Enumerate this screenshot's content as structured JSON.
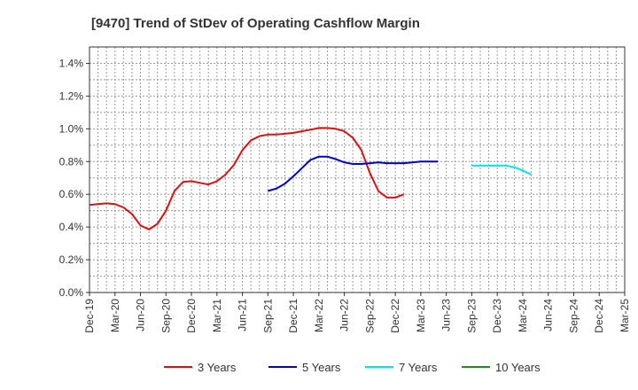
{
  "chart_data": {
    "type": "line",
    "title": "[9470]  Trend of StDev of Operating Cashflow Margin",
    "xlabel": "",
    "ylabel": "",
    "x_ticks": [
      "Dec-19",
      "Mar-20",
      "Jun-20",
      "Sep-20",
      "Dec-20",
      "Mar-21",
      "Jun-21",
      "Sep-21",
      "Dec-21",
      "Mar-22",
      "Jun-22",
      "Sep-22",
      "Dec-22",
      "Mar-23",
      "Jun-23",
      "Sep-23",
      "Dec-23",
      "Mar-24",
      "Jun-24",
      "Sep-24",
      "Dec-24",
      "Mar-25"
    ],
    "y_ticks": [
      "0.0%",
      "0.2%",
      "0.4%",
      "0.6%",
      "0.8%",
      "1.0%",
      "1.2%",
      "1.4%"
    ],
    "ylim": [
      0,
      1.5
    ],
    "y_unit": "%",
    "grid": true,
    "legend_position": "bottom",
    "series": [
      {
        "name": "3 Years",
        "color": "#dd1111",
        "x_start": "Dec-19",
        "values": [
          0.535,
          0.54,
          0.545,
          0.54,
          0.52,
          0.48,
          0.41,
          0.385,
          0.42,
          0.5,
          0.62,
          0.675,
          0.68,
          0.67,
          0.66,
          0.68,
          0.72,
          0.78,
          0.87,
          0.93,
          0.955,
          0.965,
          0.965,
          0.97,
          0.975,
          0.985,
          0.995,
          1.005,
          1.005,
          1.0,
          0.985,
          0.945,
          0.87,
          0.73,
          0.62,
          0.58,
          0.58,
          0.6
        ]
      },
      {
        "name": "5 Years",
        "color": "#0000cc",
        "x_start": "Sep-21",
        "values": [
          0.62,
          0.635,
          0.665,
          0.71,
          0.76,
          0.81,
          0.83,
          0.83,
          0.815,
          0.795,
          0.785,
          0.785,
          0.79,
          0.795,
          0.79,
          0.79,
          0.79,
          0.795,
          0.8,
          0.8,
          0.8
        ]
      },
      {
        "name": "7 Years",
        "color": "#00e5ee",
        "x_start": "Sep-23",
        "values": [
          0.775,
          0.775,
          0.775,
          0.775,
          0.775,
          0.765,
          0.745,
          0.72
        ]
      },
      {
        "name": "10 Years",
        "color": "#228b22",
        "x_start": "",
        "values": []
      }
    ]
  }
}
